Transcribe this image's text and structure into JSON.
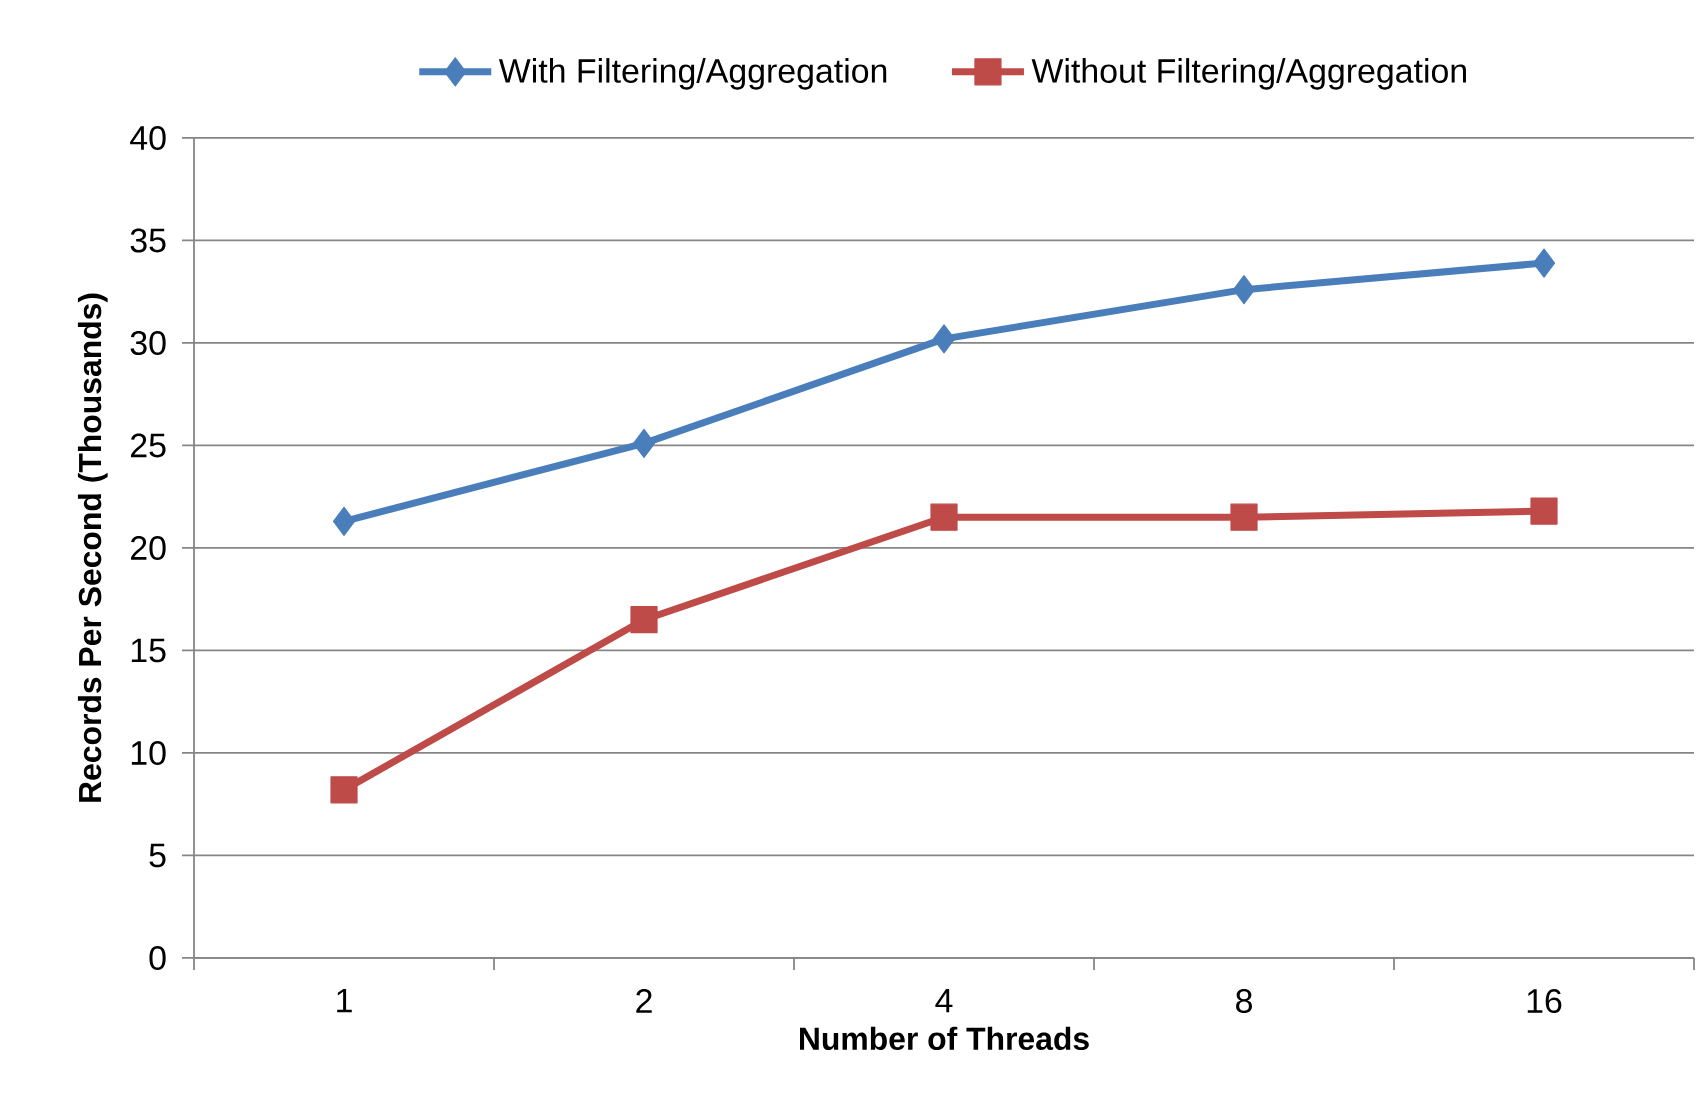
{
  "chart_data": {
    "type": "line",
    "xlabel": "Number of Threads",
    "ylabel": "Records Per Second (Thousands)",
    "categories": [
      "1",
      "2",
      "4",
      "8",
      "16"
    ],
    "series": [
      {
        "name": "With Filtering/Aggregation",
        "color": "#4a7ebb",
        "marker": "diamond",
        "values": [
          21.3,
          25.1,
          30.2,
          32.6,
          33.9
        ]
      },
      {
        "name": "Without Filtering/Aggregation",
        "color": "#be4b48",
        "marker": "square",
        "values": [
          8.2,
          16.5,
          21.5,
          21.5,
          21.8
        ]
      }
    ],
    "ylim": [
      0,
      40
    ],
    "yticks": [
      0,
      5,
      10,
      15,
      20,
      25,
      30,
      35,
      40
    ],
    "grid": "y",
    "legend": "top"
  }
}
